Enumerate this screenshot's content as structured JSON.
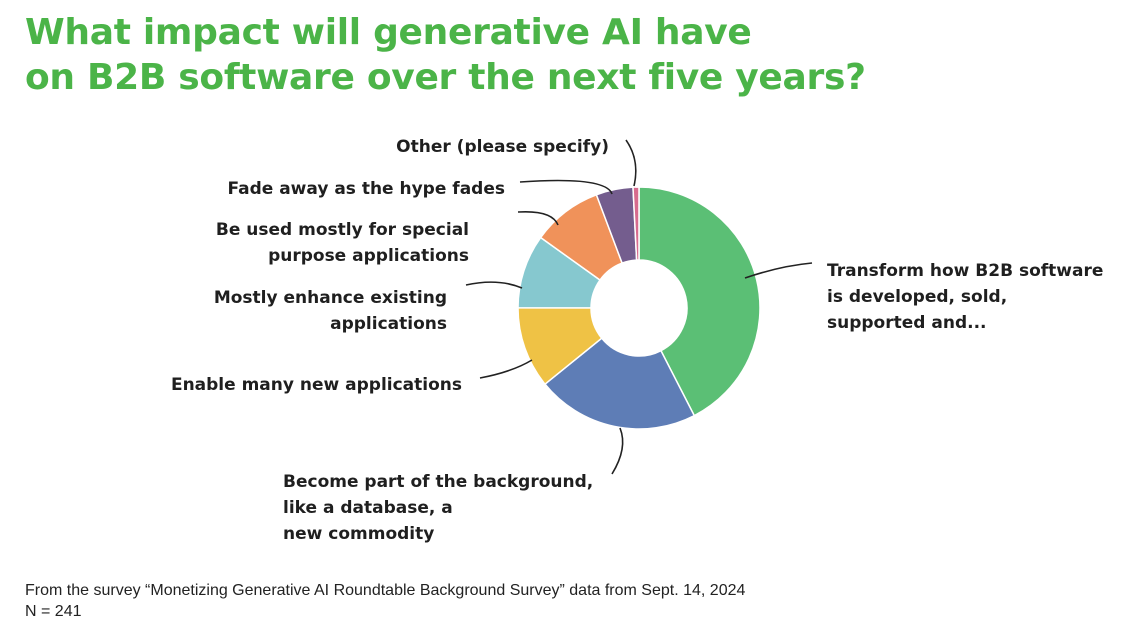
{
  "title": {
    "line1": "What impact will generative AI have",
    "line2": "on B2B software over the next five years?"
  },
  "chart_data": {
    "type": "pie",
    "style": "donut",
    "slices": [
      {
        "label": "Transform how B2B software is developed, sold, supported and...",
        "label_lines": [
          "Transform how B2B software",
          "is developed, sold,",
          "supported and..."
        ],
        "value": 43,
        "color": "#5bbf75"
      },
      {
        "label": "Become part of the background, like a database, a new commodity",
        "label_lines": [
          "Become part of the background,",
          "like a database, a",
          "new commodity"
        ],
        "value": 22,
        "color": "#5e7db6"
      },
      {
        "label": "Enable many new applications",
        "label_lines": [
          "Enable many new applications"
        ],
        "value": 11,
        "color": "#efc245"
      },
      {
        "label": "Mostly enhance existing applications",
        "label_lines": [
          "Mostly enhance existing",
          "applications"
        ],
        "value": 10,
        "color": "#86c8cf"
      },
      {
        "label": "Be used mostly for special purpose applications",
        "label_lines": [
          "Be used mostly for special",
          "purpose applications"
        ],
        "value": 9.5,
        "color": "#f0925a"
      },
      {
        "label": "Fade away as the hype fades",
        "label_lines": [
          "Fade away as the hype fades"
        ],
        "value": 5,
        "color": "#745d8e"
      },
      {
        "label": "Other (please specify)",
        "label_lines": [
          "Other (please specify)"
        ],
        "value": 0.8,
        "color": "#d76b8e"
      }
    ]
  },
  "footer": {
    "source": "From the survey “Monetizing Generative AI Roundtable Background Survey” data from Sept. 14, 2024",
    "n": "N = 241"
  }
}
